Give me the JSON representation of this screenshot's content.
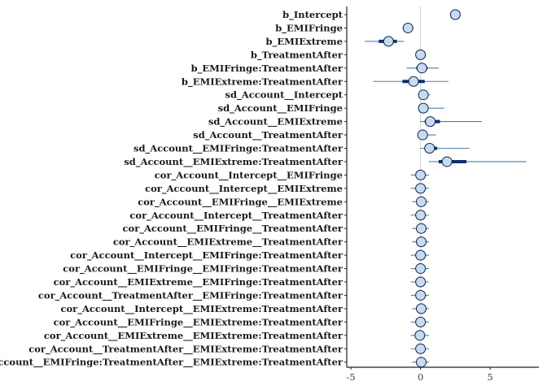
{
  "chart_data": {
    "type": "interval",
    "xlim": [
      -5.3,
      8.5
    ],
    "x_ticks": [
      -5,
      0,
      5
    ],
    "x_tick_labels": [
      "-5",
      "0",
      "5"
    ],
    "reference_line": 0,
    "grid": false,
    "colors": {
      "point_fill": "#c6dbef",
      "point_stroke": "#0b1f4a",
      "inner_interval": "#0b2f6b",
      "outer_interval": "#4f7fa6",
      "reference_line": "#d3d3d3",
      "axis": "#222222"
    },
    "parameters": [
      {
        "label": "b_Intercept",
        "estimate": 2.5,
        "inner": [
          2.3,
          2.7
        ],
        "outer": [
          2.2,
          2.8
        ]
      },
      {
        "label": "b_EMIFringe",
        "estimate": -0.9,
        "inner": [
          -1.1,
          -0.7
        ],
        "outer": [
          -1.3,
          -0.5
        ]
      },
      {
        "label": "b_EMIExtreme",
        "estimate": -2.3,
        "inner": [
          -3.0,
          -1.7
        ],
        "outer": [
          -4.0,
          -1.2
        ]
      },
      {
        "label": "b_TreatmentAfter",
        "estimate": 0.0,
        "inner": [
          -0.1,
          0.1
        ],
        "outer": [
          -0.2,
          0.2
        ]
      },
      {
        "label": "b_EMIFringe:TreatmentAfter",
        "estimate": 0.1,
        "inner": [
          -0.3,
          0.5
        ],
        "outer": [
          -1.0,
          1.3
        ]
      },
      {
        "label": "b_EMIExtreme:TreatmentAfter",
        "estimate": -0.5,
        "inner": [
          -1.3,
          0.3
        ],
        "outer": [
          -3.4,
          2.0
        ]
      },
      {
        "label": "sd_Account__Intercept",
        "estimate": 0.2,
        "inner": [
          0.05,
          0.35
        ],
        "outer": [
          0.0,
          0.7
        ]
      },
      {
        "label": "sd_Account__EMIFringe",
        "estimate": 0.2,
        "inner": [
          0.05,
          0.5
        ],
        "outer": [
          0.0,
          1.7
        ]
      },
      {
        "label": "sd_Account__EMIExtreme",
        "estimate": 0.7,
        "inner": [
          0.3,
          1.4
        ],
        "outer": [
          0.0,
          4.4
        ]
      },
      {
        "label": "sd_Account__TreatmentAfter",
        "estimate": 0.15,
        "inner": [
          0.05,
          0.35
        ],
        "outer": [
          0.0,
          1.1
        ]
      },
      {
        "label": "sd_Account__EMIFringe:TreatmentAfter",
        "estimate": 0.65,
        "inner": [
          0.3,
          1.2
        ],
        "outer": [
          0.0,
          3.5
        ]
      },
      {
        "label": "sd_Account__EMIExtreme:TreatmentAfter",
        "estimate": 1.9,
        "inner": [
          1.3,
          3.3
        ],
        "outer": [
          0.6,
          7.6
        ]
      },
      {
        "label": "cor_Account__Intercept__EMIFringe",
        "estimate": 0.0,
        "inner": [
          -0.3,
          0.3
        ],
        "outer": [
          -0.7,
          0.6
        ]
      },
      {
        "label": "cor_Account__Intercept__EMIExtreme",
        "estimate": 0.0,
        "inner": [
          -0.3,
          0.3
        ],
        "outer": [
          -0.7,
          0.6
        ]
      },
      {
        "label": "cor_Account__EMIFringe__EMIExtreme",
        "estimate": 0.05,
        "inner": [
          -0.3,
          0.3
        ],
        "outer": [
          -0.6,
          0.6
        ]
      },
      {
        "label": "cor_Account__Intercept__TreatmentAfter",
        "estimate": 0.0,
        "inner": [
          -0.3,
          0.3
        ],
        "outer": [
          -0.7,
          0.6
        ]
      },
      {
        "label": "cor_Account__EMIFringe__TreatmentAfter",
        "estimate": 0.05,
        "inner": [
          -0.3,
          0.3
        ],
        "outer": [
          -0.6,
          0.6
        ]
      },
      {
        "label": "cor_Account__EMIExtreme__TreatmentAfter",
        "estimate": 0.05,
        "inner": [
          -0.3,
          0.3
        ],
        "outer": [
          -0.6,
          0.6
        ]
      },
      {
        "label": "cor_Account__Intercept__EMIFringe:TreatmentAfter",
        "estimate": 0.0,
        "inner": [
          -0.3,
          0.3
        ],
        "outer": [
          -0.7,
          0.6
        ]
      },
      {
        "label": "cor_Account__EMIFringe__EMIFringe:TreatmentAfter",
        "estimate": 0.0,
        "inner": [
          -0.3,
          0.3
        ],
        "outer": [
          -0.7,
          0.6
        ]
      },
      {
        "label": "cor_Account__EMIExtreme__EMIFringe:TreatmentAfter",
        "estimate": 0.0,
        "inner": [
          -0.3,
          0.3
        ],
        "outer": [
          -0.7,
          0.6
        ]
      },
      {
        "label": "cor_Account__TreatmentAfter__EMIFringe:TreatmentAfter",
        "estimate": 0.0,
        "inner": [
          -0.3,
          0.3
        ],
        "outer": [
          -0.7,
          0.6
        ]
      },
      {
        "label": "cor_Account__Intercept__EMIExtreme:TreatmentAfter",
        "estimate": 0.05,
        "inner": [
          -0.3,
          0.3
        ],
        "outer": [
          -0.6,
          0.6
        ]
      },
      {
        "label": "cor_Account__EMIFringe__EMIExtreme:TreatmentAfter",
        "estimate": 0.0,
        "inner": [
          -0.3,
          0.3
        ],
        "outer": [
          -0.7,
          0.6
        ]
      },
      {
        "label": "cor_Account__EMIExtreme__EMIExtreme:TreatmentAfter",
        "estimate": -0.05,
        "inner": [
          -0.3,
          0.3
        ],
        "outer": [
          -0.7,
          0.6
        ]
      },
      {
        "label": "cor_Account__TreatmentAfter__EMIExtreme:TreatmentAfter",
        "estimate": 0.0,
        "inner": [
          -0.3,
          0.3
        ],
        "outer": [
          -0.7,
          0.6
        ]
      },
      {
        "label": "cor_Account__EMIFringe:TreatmentAfter__EMIExtreme:TreatmentAfter",
        "estimate": 0.05,
        "inner": [
          -0.3,
          0.3
        ],
        "outer": [
          -0.6,
          0.6
        ]
      }
    ]
  }
}
